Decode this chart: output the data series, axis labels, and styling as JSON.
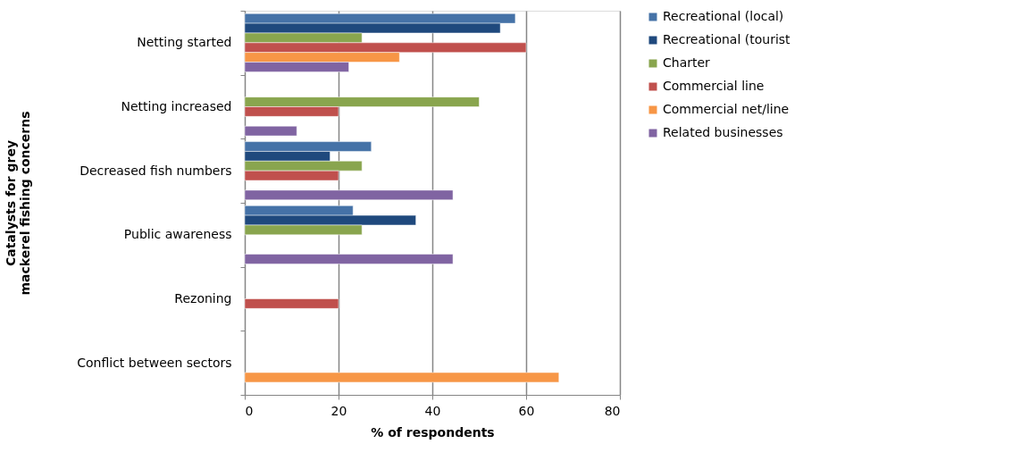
{
  "chart_data": {
    "type": "bar",
    "orientation": "horizontal",
    "xlabel": "% of respondents",
    "ylabel": "Catalysts for grey mackerel fishing concerns",
    "categories": [
      "Netting started",
      "Netting increased",
      "Decreased fish numbers",
      "Public awareness",
      "Rezoning",
      "Conflict between sectors"
    ],
    "series": [
      {
        "name": "Recreational (local)",
        "color": "#4572a7",
        "values": [
          57.7,
          null,
          27,
          23.1,
          null,
          null
        ]
      },
      {
        "name": "Recreational (tourist",
        "color": "#1f497d",
        "values": [
          54.5,
          null,
          18.2,
          36.5,
          null,
          null
        ]
      },
      {
        "name": "Charter",
        "color": "#89a54e",
        "values": [
          25,
          50,
          25,
          25,
          null,
          null
        ]
      },
      {
        "name": "Commercial line",
        "color": "#c0504d",
        "values": [
          60,
          20,
          20,
          null,
          20,
          null
        ]
      },
      {
        "name": "Commercial net/line",
        "color": "#f79646",
        "values": [
          33,
          null,
          null,
          null,
          null,
          67
        ]
      },
      {
        "name": "Related businesses",
        "color": "#8064a2",
        "values": [
          22.2,
          11.1,
          44.4,
          44.4,
          null,
          null
        ]
      }
    ],
    "xlim": [
      0,
      80
    ],
    "xticks": [
      0,
      20,
      40,
      60,
      80
    ],
    "grid": "x",
    "legend": "top right"
  }
}
